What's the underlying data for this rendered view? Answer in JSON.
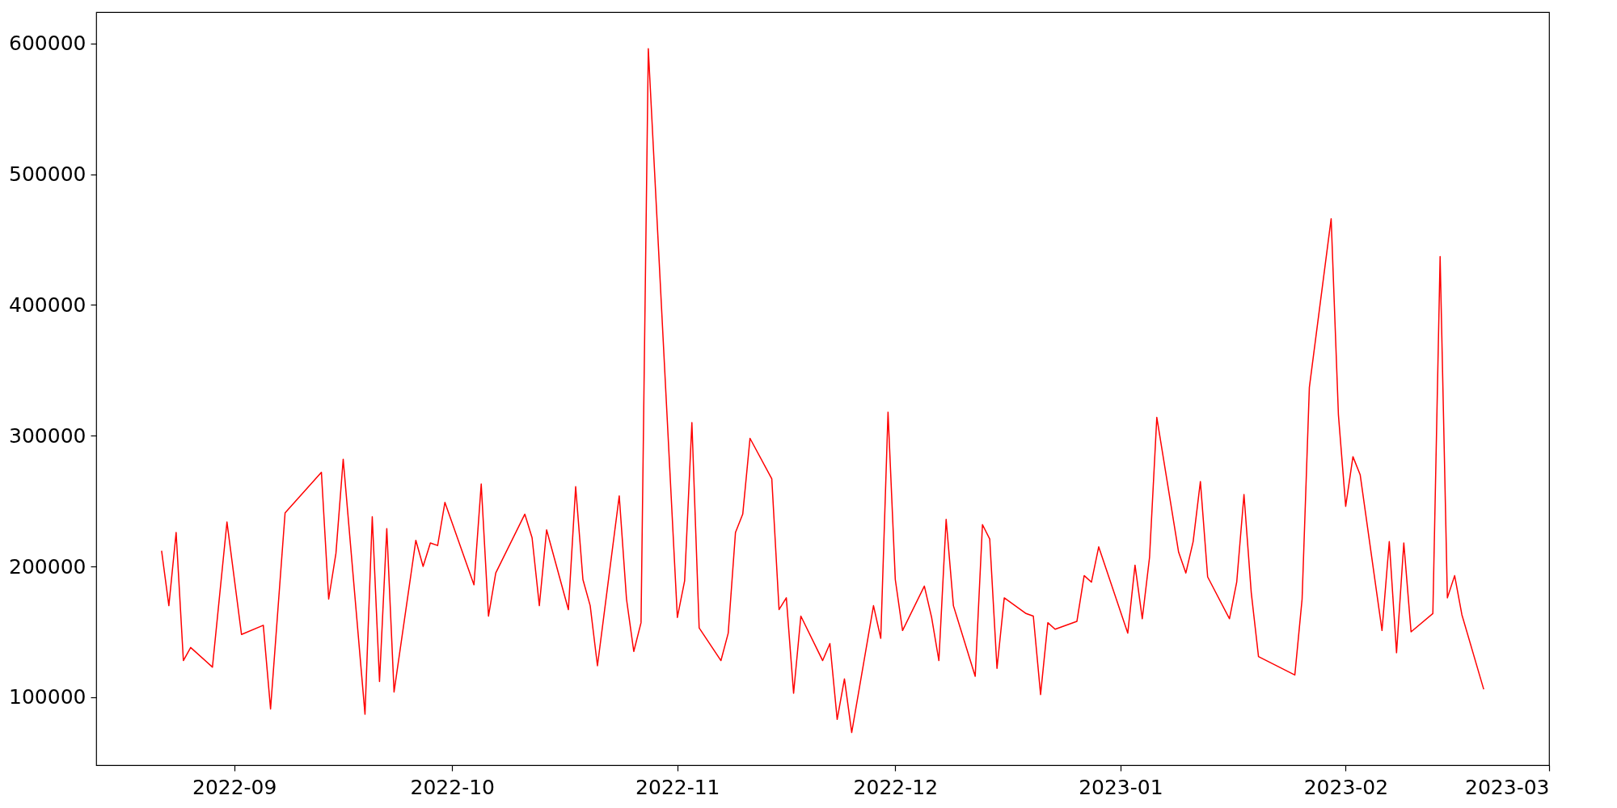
{
  "chart_data": {
    "type": "line",
    "x": [
      "2022-08-22",
      "2022-08-23",
      "2022-08-24",
      "2022-08-25",
      "2022-08-26",
      "2022-08-29",
      "2022-08-31",
      "2022-09-02",
      "2022-09-05",
      "2022-09-06",
      "2022-09-08",
      "2022-09-13",
      "2022-09-14",
      "2022-09-15",
      "2022-09-16",
      "2022-09-19",
      "2022-09-20",
      "2022-09-21",
      "2022-09-22",
      "2022-09-23",
      "2022-09-26",
      "2022-09-27",
      "2022-09-28",
      "2022-09-29",
      "2022-09-30",
      "2022-10-04",
      "2022-10-05",
      "2022-10-06",
      "2022-10-07",
      "2022-10-11",
      "2022-10-12",
      "2022-10-13",
      "2022-10-14",
      "2022-10-17",
      "2022-10-18",
      "2022-10-19",
      "2022-10-20",
      "2022-10-21",
      "2022-10-24",
      "2022-10-25",
      "2022-10-26",
      "2022-10-27",
      "2022-10-28",
      "2022-11-01",
      "2022-11-02",
      "2022-11-03",
      "2022-11-04",
      "2022-11-07",
      "2022-11-08",
      "2022-11-09",
      "2022-11-10",
      "2022-11-11",
      "2022-11-14",
      "2022-11-15",
      "2022-11-16",
      "2022-11-17",
      "2022-11-18",
      "2022-11-21",
      "2022-11-22",
      "2022-11-23",
      "2022-11-24",
      "2022-11-25",
      "2022-11-28",
      "2022-11-29",
      "2022-11-30",
      "2022-12-01",
      "2022-12-02",
      "2022-12-05",
      "2022-12-06",
      "2022-12-07",
      "2022-12-08",
      "2022-12-09",
      "2022-12-12",
      "2022-12-13",
      "2022-12-14",
      "2022-12-15",
      "2022-12-16",
      "2022-12-19",
      "2022-12-20",
      "2022-12-21",
      "2022-12-22",
      "2022-12-23",
      "2022-12-26",
      "2022-12-27",
      "2022-12-28",
      "2022-12-29",
      "2023-01-02",
      "2023-01-03",
      "2023-01-04",
      "2023-01-05",
      "2023-01-06",
      "2023-01-09",
      "2023-01-10",
      "2023-01-11",
      "2023-01-12",
      "2023-01-13",
      "2023-01-16",
      "2023-01-17",
      "2023-01-18",
      "2023-01-19",
      "2023-01-20",
      "2023-01-25",
      "2023-01-26",
      "2023-01-27",
      "2023-01-30",
      "2023-01-31",
      "2023-02-01",
      "2023-02-02",
      "2023-02-03",
      "2023-02-06",
      "2023-02-07",
      "2023-02-08",
      "2023-02-09",
      "2023-02-10",
      "2023-02-13",
      "2023-02-14",
      "2023-02-15",
      "2023-02-16",
      "2023-02-17",
      "2023-02-20"
    ],
    "series": [
      {
        "color": "#ff0000",
        "values": [
          212000,
          170000,
          226000,
          128000,
          138000,
          123000,
          234000,
          148000,
          155000,
          91000,
          241000,
          272000,
          175000,
          210000,
          282000,
          87000,
          238000,
          112000,
          229000,
          104000,
          220000,
          200000,
          218000,
          216000,
          249000,
          186000,
          263000,
          162000,
          195000,
          240000,
          222000,
          170000,
          228000,
          167000,
          261000,
          190000,
          170000,
          124000,
          254000,
          175000,
          135000,
          157000,
          596000,
          161000,
          189000,
          310000,
          153000,
          128000,
          149000,
          226000,
          240000,
          298000,
          267000,
          167000,
          176000,
          103000,
          162000,
          128000,
          141000,
          83000,
          114000,
          73000,
          170000,
          145000,
          318000,
          190000,
          151000,
          185000,
          161000,
          128000,
          236000,
          170000,
          116000,
          232000,
          221000,
          122000,
          176000,
          164000,
          162000,
          102000,
          157000,
          152000,
          158000,
          193000,
          188000,
          215000,
          149000,
          201000,
          160000,
          207000,
          314000,
          211000,
          195000,
          219000,
          265000,
          192000,
          160000,
          188000,
          255000,
          180000,
          131000,
          117000,
          175000,
          337000,
          466000,
          316000,
          246000,
          284000,
          270000,
          151000,
          219000,
          134000,
          218000,
          150000,
          164000,
          437000,
          176000,
          193000,
          163000,
          106000
        ]
      }
    ],
    "xlim": [
      "2022-08-13",
      "2023-03-01"
    ],
    "xticks": [
      "2022-09",
      "2022-10",
      "2022-11",
      "2022-12",
      "2023-01",
      "2023-02",
      "2023-03"
    ],
    "ylim": [
      48000,
      624000
    ],
    "yticks": [
      100000,
      200000,
      300000,
      400000,
      500000,
      600000
    ],
    "grid": false,
    "legend": false
  }
}
